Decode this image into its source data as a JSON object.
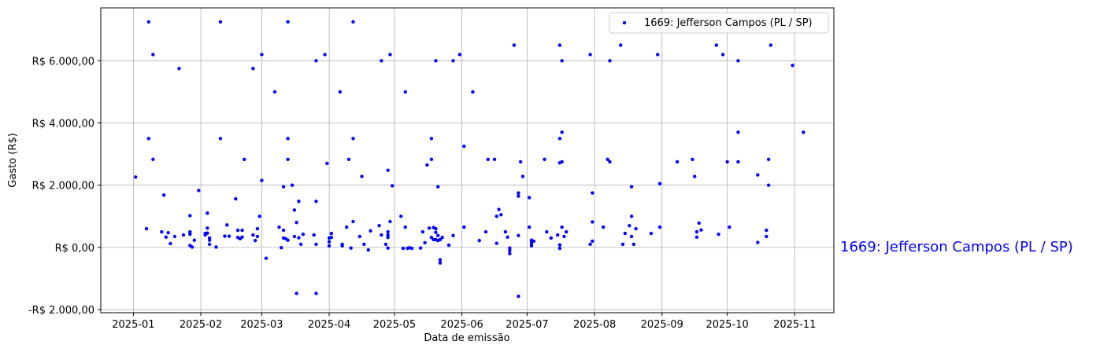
{
  "chart_data": {
    "type": "scatter",
    "xlabel": "Data de emissão",
    "ylabel": "Gasto (R$)",
    "xlim": [
      "2024-12-17",
      "2025-11-19"
    ],
    "ylim": [
      -2100,
      7700
    ],
    "grid": true,
    "legend_position": "top-right",
    "colors": {
      "points": "#0000ff",
      "grid": "#b0b0b0",
      "axes": "#000000"
    },
    "x_ticks": [
      {
        "date": "2025-01-01",
        "label": "2025-01"
      },
      {
        "date": "2025-02-01",
        "label": "2025-02"
      },
      {
        "date": "2025-03-01",
        "label": "2025-03"
      },
      {
        "date": "2025-04-01",
        "label": "2025-04"
      },
      {
        "date": "2025-05-01",
        "label": "2025-05"
      },
      {
        "date": "2025-06-01",
        "label": "2025-06"
      },
      {
        "date": "2025-07-01",
        "label": "2025-07"
      },
      {
        "date": "2025-08-01",
        "label": "2025-08"
      },
      {
        "date": "2025-09-01",
        "label": "2025-09"
      },
      {
        "date": "2025-10-01",
        "label": "2025-10"
      },
      {
        "date": "2025-11-01",
        "label": "2025-11"
      }
    ],
    "y_ticks": [
      {
        "value": -2000,
        "label": "-R$ 2.000,00"
      },
      {
        "value": 0,
        "label": "R$ 0,00"
      },
      {
        "value": 2000,
        "label": "R$ 2.000,00"
      },
      {
        "value": 4000,
        "label": "R$ 4.000,00"
      },
      {
        "value": 6000,
        "label": "R$ 6.000,00"
      }
    ],
    "series": [
      {
        "name": "1669: Jefferson Campos (PL / SP)",
        "points": [
          [
            "2025-01-02",
            2260
          ],
          [
            "2025-01-07",
            600
          ],
          [
            "2025-01-08",
            7250
          ],
          [
            "2025-01-08",
            3500
          ],
          [
            "2025-01-10",
            6200
          ],
          [
            "2025-01-10",
            2830
          ],
          [
            "2025-01-14",
            500
          ],
          [
            "2025-01-15",
            1680
          ],
          [
            "2025-01-16",
            330
          ],
          [
            "2025-01-17",
            470
          ],
          [
            "2025-01-18",
            120
          ],
          [
            "2025-01-20",
            350
          ],
          [
            "2025-01-22",
            5750
          ],
          [
            "2025-01-24",
            400
          ],
          [
            "2025-01-27",
            1020
          ],
          [
            "2025-01-27",
            500
          ],
          [
            "2025-01-27",
            420
          ],
          [
            "2025-01-27",
            60
          ],
          [
            "2025-01-28",
            10
          ],
          [
            "2025-01-29",
            230
          ],
          [
            "2025-01-31",
            1830
          ],
          [
            "2025-02-03",
            450
          ],
          [
            "2025-02-03",
            400
          ],
          [
            "2025-02-04",
            460
          ],
          [
            "2025-02-04",
            1100
          ],
          [
            "2025-02-04",
            620
          ],
          [
            "2025-02-05",
            300
          ],
          [
            "2025-02-05",
            100
          ],
          [
            "2025-02-05",
            230
          ],
          [
            "2025-02-08",
            10
          ],
          [
            "2025-02-10",
            7250
          ],
          [
            "2025-02-10",
            3500
          ],
          [
            "2025-02-12",
            360
          ],
          [
            "2025-02-13",
            720
          ],
          [
            "2025-02-14",
            360
          ],
          [
            "2025-02-17",
            1560
          ],
          [
            "2025-02-18",
            550
          ],
          [
            "2025-02-18",
            320
          ],
          [
            "2025-02-19",
            280
          ],
          [
            "2025-02-20",
            550
          ],
          [
            "2025-02-20",
            330
          ],
          [
            "2025-02-21",
            2830
          ],
          [
            "2025-02-25",
            5750
          ],
          [
            "2025-02-25",
            400
          ],
          [
            "2025-02-26",
            220
          ],
          [
            "2025-02-27",
            600
          ],
          [
            "2025-02-27",
            350
          ],
          [
            "2025-02-28",
            1000
          ],
          [
            "2025-03-01",
            6200
          ],
          [
            "2025-03-01",
            2150
          ],
          [
            "2025-03-03",
            -350
          ],
          [
            "2025-03-07",
            5000
          ],
          [
            "2025-03-09",
            650
          ],
          [
            "2025-03-10",
            -10
          ],
          [
            "2025-03-11",
            1950
          ],
          [
            "2025-03-11",
            550
          ],
          [
            "2025-03-11",
            300
          ],
          [
            "2025-03-12",
            280
          ],
          [
            "2025-03-13",
            230
          ],
          [
            "2025-03-13",
            7250
          ],
          [
            "2025-03-13",
            3500
          ],
          [
            "2025-03-13",
            2830
          ],
          [
            "2025-03-15",
            2000
          ],
          [
            "2025-03-16",
            1200
          ],
          [
            "2025-03-16",
            350
          ],
          [
            "2025-03-17",
            800
          ],
          [
            "2025-03-17",
            -1480
          ],
          [
            "2025-03-18",
            1480
          ],
          [
            "2025-03-18",
            310
          ],
          [
            "2025-03-19",
            100
          ],
          [
            "2025-03-20",
            420
          ],
          [
            "2025-03-25",
            400
          ],
          [
            "2025-03-26",
            6000
          ],
          [
            "2025-03-26",
            1480
          ],
          [
            "2025-03-26",
            -1480
          ],
          [
            "2025-03-26",
            100
          ],
          [
            "2025-03-30",
            6200
          ],
          [
            "2025-03-31",
            2700
          ],
          [
            "2025-04-01",
            300
          ],
          [
            "2025-04-01",
            180
          ],
          [
            "2025-04-01",
            50
          ],
          [
            "2025-04-02",
            450
          ],
          [
            "2025-04-02",
            320
          ],
          [
            "2025-04-06",
            5000
          ],
          [
            "2025-04-07",
            100
          ],
          [
            "2025-04-07",
            50
          ],
          [
            "2025-04-09",
            650
          ],
          [
            "2025-04-10",
            2830
          ],
          [
            "2025-04-11",
            -20
          ],
          [
            "2025-04-12",
            7250
          ],
          [
            "2025-04-12",
            3500
          ],
          [
            "2025-04-12",
            830
          ],
          [
            "2025-04-15",
            350
          ],
          [
            "2025-04-16",
            2280
          ],
          [
            "2025-04-17",
            100
          ],
          [
            "2025-04-19",
            -80
          ],
          [
            "2025-04-20",
            530
          ],
          [
            "2025-04-24",
            700
          ],
          [
            "2025-04-25",
            6000
          ],
          [
            "2025-04-25",
            400
          ],
          [
            "2025-04-27",
            100
          ],
          [
            "2025-04-28",
            2480
          ],
          [
            "2025-04-28",
            500
          ],
          [
            "2025-04-28",
            400
          ],
          [
            "2025-04-28",
            320
          ],
          [
            "2025-04-28",
            -20
          ],
          [
            "2025-04-29",
            6200
          ],
          [
            "2025-04-29",
            830
          ],
          [
            "2025-04-30",
            1980
          ],
          [
            "2025-05-04",
            1000
          ],
          [
            "2025-05-05",
            -30
          ],
          [
            "2025-05-06",
            5000
          ],
          [
            "2025-05-06",
            650
          ],
          [
            "2025-05-07",
            -30
          ],
          [
            "2025-05-08",
            -10
          ],
          [
            "2025-05-09",
            -30
          ],
          [
            "2025-05-13",
            -20
          ],
          [
            "2025-05-14",
            500
          ],
          [
            "2025-05-15",
            150
          ],
          [
            "2025-05-16",
            2650
          ],
          [
            "2025-05-17",
            620
          ],
          [
            "2025-05-18",
            2830
          ],
          [
            "2025-05-18",
            3500
          ],
          [
            "2025-05-18",
            320
          ],
          [
            "2025-05-19",
            250
          ],
          [
            "2025-05-19",
            640
          ],
          [
            "2025-05-20",
            6000
          ],
          [
            "2025-05-20",
            600
          ],
          [
            "2025-05-20",
            480
          ],
          [
            "2025-05-20",
            250
          ],
          [
            "2025-05-21",
            380
          ],
          [
            "2025-05-21",
            220
          ],
          [
            "2025-05-21",
            1950
          ],
          [
            "2025-05-22",
            -400
          ],
          [
            "2025-05-22",
            -500
          ],
          [
            "2025-05-22",
            250
          ],
          [
            "2025-05-23",
            320
          ],
          [
            "2025-05-26",
            70
          ],
          [
            "2025-05-28",
            6000
          ],
          [
            "2025-05-28",
            380
          ],
          [
            "2025-05-31",
            6200
          ],
          [
            "2025-06-02",
            3250
          ],
          [
            "2025-06-02",
            650
          ],
          [
            "2025-06-06",
            5000
          ],
          [
            "2025-06-09",
            220
          ],
          [
            "2025-06-12",
            500
          ],
          [
            "2025-06-13",
            2830
          ],
          [
            "2025-06-16",
            2830
          ],
          [
            "2025-06-17",
            1000
          ],
          [
            "2025-06-17",
            130
          ],
          [
            "2025-06-18",
            1220
          ],
          [
            "2025-06-19",
            1050
          ],
          [
            "2025-06-21",
            500
          ],
          [
            "2025-06-22",
            330
          ],
          [
            "2025-06-23",
            -20
          ],
          [
            "2025-06-23",
            -200
          ],
          [
            "2025-06-23",
            -100
          ],
          [
            "2025-06-25",
            6500
          ],
          [
            "2025-06-27",
            380
          ],
          [
            "2025-06-27",
            1750
          ],
          [
            "2025-06-27",
            1650
          ],
          [
            "2025-06-27",
            -1570
          ],
          [
            "2025-06-28",
            2750
          ],
          [
            "2025-06-29",
            2280
          ],
          [
            "2025-07-02",
            1600
          ],
          [
            "2025-07-02",
            650
          ],
          [
            "2025-07-03",
            230
          ],
          [
            "2025-07-03",
            180
          ],
          [
            "2025-07-03",
            100
          ],
          [
            "2025-07-03",
            50
          ],
          [
            "2025-07-04",
            200
          ],
          [
            "2025-07-09",
            2830
          ],
          [
            "2025-07-10",
            500
          ],
          [
            "2025-07-12",
            300
          ],
          [
            "2025-07-15",
            400
          ],
          [
            "2025-07-16",
            -30
          ],
          [
            "2025-07-16",
            80
          ],
          [
            "2025-07-16",
            6500
          ],
          [
            "2025-07-16",
            3500
          ],
          [
            "2025-07-16",
            2720
          ],
          [
            "2025-07-17",
            6000
          ],
          [
            "2025-07-17",
            3700
          ],
          [
            "2025-07-17",
            2750
          ],
          [
            "2025-07-17",
            650
          ],
          [
            "2025-07-18",
            350
          ],
          [
            "2025-07-19",
            500
          ],
          [
            "2025-07-30",
            6200
          ],
          [
            "2025-07-30",
            100
          ],
          [
            "2025-07-31",
            1750
          ],
          [
            "2025-07-31",
            820
          ],
          [
            "2025-07-31",
            200
          ],
          [
            "2025-08-05",
            650
          ],
          [
            "2025-08-07",
            2830
          ],
          [
            "2025-08-08",
            6000
          ],
          [
            "2025-08-08",
            2750
          ],
          [
            "2025-08-13",
            6500
          ],
          [
            "2025-08-14",
            100
          ],
          [
            "2025-08-15",
            450
          ],
          [
            "2025-08-17",
            700
          ],
          [
            "2025-08-18",
            1950
          ],
          [
            "2025-08-18",
            1000
          ],
          [
            "2025-08-18",
            350
          ],
          [
            "2025-08-19",
            100
          ],
          [
            "2025-08-20",
            600
          ],
          [
            "2025-08-27",
            450
          ],
          [
            "2025-08-30",
            6200
          ],
          [
            "2025-08-31",
            2050
          ],
          [
            "2025-08-31",
            650
          ],
          [
            "2025-09-08",
            2750
          ],
          [
            "2025-09-15",
            2830
          ],
          [
            "2025-09-16",
            2280
          ],
          [
            "2025-09-17",
            330
          ],
          [
            "2025-09-17",
            500
          ],
          [
            "2025-09-18",
            780
          ],
          [
            "2025-09-19",
            560
          ],
          [
            "2025-09-26",
            6500
          ],
          [
            "2025-09-27",
            420
          ],
          [
            "2025-09-29",
            6200
          ],
          [
            "2025-10-01",
            2750
          ],
          [
            "2025-10-02",
            650
          ],
          [
            "2025-10-06",
            6000
          ],
          [
            "2025-10-06",
            3700
          ],
          [
            "2025-10-06",
            2750
          ],
          [
            "2025-10-15",
            2330
          ],
          [
            "2025-10-15",
            160
          ],
          [
            "2025-10-19",
            350
          ],
          [
            "2025-10-19",
            550
          ],
          [
            "2025-10-20",
            2000
          ],
          [
            "2025-10-20",
            2830
          ],
          [
            "2025-10-21",
            6500
          ],
          [
            "2025-10-31",
            5850
          ],
          [
            "2025-11-05",
            3700
          ]
        ]
      }
    ]
  },
  "side_label": "1669: Jefferson Campos (PL / SP)"
}
